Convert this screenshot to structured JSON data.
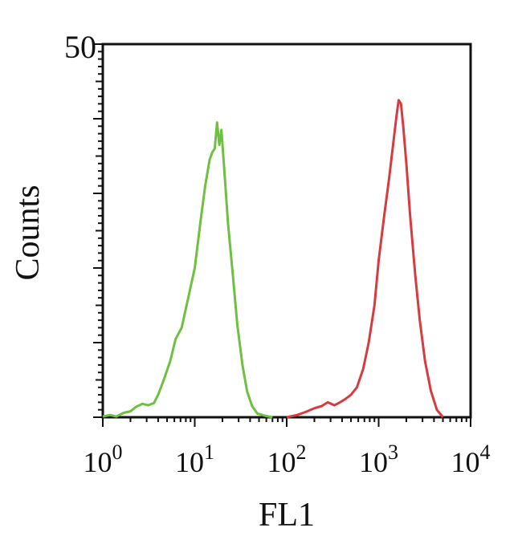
{
  "chart_data": {
    "type": "line",
    "title": "",
    "xlabel": "FL1",
    "ylabel": "Counts",
    "x_scale": "log",
    "xlim": [
      1,
      10000
    ],
    "ylim": [
      0,
      50
    ],
    "grid": false,
    "legend": "none",
    "y_tick_label": "50",
    "x_ticks": [
      {
        "value": 1,
        "base": "10",
        "exp": "0"
      },
      {
        "value": 10,
        "base": "10",
        "exp": "1"
      },
      {
        "value": 100,
        "base": "10",
        "exp": "2"
      },
      {
        "value": 1000,
        "base": "10",
        "exp": "3"
      },
      {
        "value": 10000,
        "base": "10",
        "exp": "4"
      }
    ],
    "series": [
      {
        "color": "#6ec040",
        "points": [
          [
            1.0,
            0.1
          ],
          [
            1.2,
            0.3
          ],
          [
            1.4,
            0.1
          ],
          [
            1.7,
            0.6
          ],
          [
            2.0,
            0.8
          ],
          [
            2.3,
            1.4
          ],
          [
            2.7,
            1.8
          ],
          [
            3.1,
            1.6
          ],
          [
            3.6,
            1.9
          ],
          [
            4.0,
            3.0
          ],
          [
            4.6,
            5.0
          ],
          [
            5.4,
            7.5
          ],
          [
            6.2,
            10.5
          ],
          [
            7.2,
            12.0
          ],
          [
            8.5,
            16.0
          ],
          [
            10.0,
            20.0
          ],
          [
            11.5,
            26.0
          ],
          [
            13.0,
            31.0
          ],
          [
            14.5,
            34.5
          ],
          [
            15.5,
            35.5
          ],
          [
            16.5,
            36.0
          ],
          [
            17.5,
            39.5
          ],
          [
            18.5,
            36.5
          ],
          [
            19.5,
            38.5
          ],
          [
            21.0,
            33.0
          ],
          [
            23.0,
            26.0
          ],
          [
            26.0,
            19.0
          ],
          [
            29.0,
            12.5
          ],
          [
            33.0,
            7.0
          ],
          [
            37.0,
            3.5
          ],
          [
            42.0,
            1.5
          ],
          [
            48.0,
            0.5
          ],
          [
            58.0,
            0.2
          ],
          [
            70.0,
            0.0
          ]
        ]
      },
      {
        "color": "#d83a40",
        "points": [
          [
            100,
            0.0
          ],
          [
            130,
            0.3
          ],
          [
            160,
            0.7
          ],
          [
            200,
            1.2
          ],
          [
            240,
            1.5
          ],
          [
            280,
            2.0
          ],
          [
            330,
            1.6
          ],
          [
            380,
            2.0
          ],
          [
            430,
            2.4
          ],
          [
            500,
            3.0
          ],
          [
            580,
            4.0
          ],
          [
            680,
            6.5
          ],
          [
            780,
            10.0
          ],
          [
            900,
            15.0
          ],
          [
            1000,
            21.0
          ],
          [
            1150,
            27.0
          ],
          [
            1300,
            32.0
          ],
          [
            1450,
            37.0
          ],
          [
            1550,
            40.0
          ],
          [
            1650,
            42.5
          ],
          [
            1750,
            42.0
          ],
          [
            1850,
            39.0
          ],
          [
            2000,
            34.0
          ],
          [
            2200,
            27.0
          ],
          [
            2500,
            19.0
          ],
          [
            2800,
            13.0
          ],
          [
            3200,
            7.5
          ],
          [
            3700,
            3.5
          ],
          [
            4300,
            1.0
          ],
          [
            5000,
            0.0
          ]
        ]
      }
    ]
  }
}
